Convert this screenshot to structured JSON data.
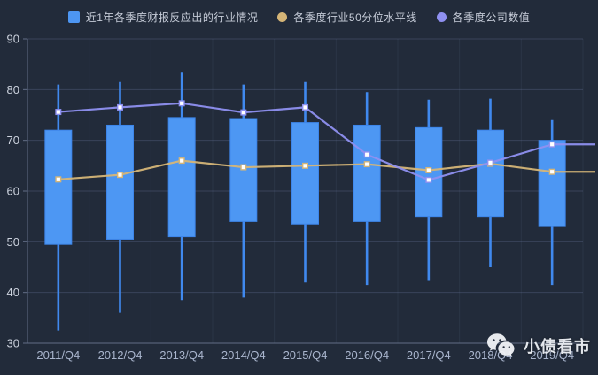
{
  "legend": {
    "items": [
      {
        "label": "近1年各季度财报反应出的行业情况",
        "marker": "square",
        "color": "#4d96f2"
      },
      {
        "label": "各季度行业50分位水平线",
        "marker": "circle",
        "color": "#d5b577"
      },
      {
        "label": "各季度公司数值",
        "marker": "circle",
        "color": "#8f90f0"
      }
    ]
  },
  "watermark": {
    "text": "小债看市",
    "icon": "wechat-icon"
  },
  "colors": {
    "background": "#222b3a",
    "box_fill": "#4d97f3",
    "box_stroke": "#3d85e9",
    "whisker": "#4089ee",
    "median_line": "#d5b577",
    "company_line": "#8f90f0",
    "marker_fill": "#ffffff",
    "gridline": "#39435a",
    "band_line": "rgba(130,150,190,0.10)",
    "axis_line": "#626e86",
    "y_label": "#cdd3de",
    "x_label": "#a9b5cd"
  },
  "chart_data": {
    "type": "candlestick+line",
    "categories": [
      "2011/Q4",
      "2012/Q4",
      "2013/Q4",
      "2014/Q4",
      "2015/Q4",
      "2016/Q4",
      "2017/Q4",
      "2018/Q4",
      "2019/Q4"
    ],
    "series": [
      {
        "name": "近1年各季度财报反应出的行业情况",
        "type": "boxplot",
        "note": "values are [low, q1, q3, high]",
        "values": [
          [
            32.5,
            49.5,
            72.0,
            81.0
          ],
          [
            36.0,
            50.5,
            73.0,
            81.5
          ],
          [
            38.5,
            51.0,
            74.5,
            83.5
          ],
          [
            39.0,
            54.0,
            74.3,
            81.0
          ],
          [
            42.0,
            53.5,
            73.5,
            81.5
          ],
          [
            41.5,
            54.0,
            73.0,
            79.5
          ],
          [
            42.3,
            55.0,
            72.5,
            78.0
          ],
          [
            45.0,
            55.0,
            72.0,
            78.2
          ],
          [
            41.5,
            53.0,
            70.0,
            74.0
          ]
        ]
      },
      {
        "name": "各季度行业50分位水平线",
        "type": "line",
        "values": [
          62.3,
          63.2,
          66.0,
          64.7,
          65.0,
          65.3,
          64.1,
          65.4,
          63.8
        ]
      },
      {
        "name": "各季度公司数值",
        "type": "line",
        "values": [
          75.6,
          76.5,
          77.3,
          75.5,
          76.5,
          67.2,
          62.2,
          65.6,
          69.2
        ]
      }
    ],
    "ylim": [
      30,
      90
    ],
    "yticks": [
      30,
      40,
      50,
      60,
      70,
      80,
      90
    ],
    "xlabel": "",
    "ylabel": "",
    "title": "",
    "grid": "horizontal",
    "legend_position": "top"
  }
}
